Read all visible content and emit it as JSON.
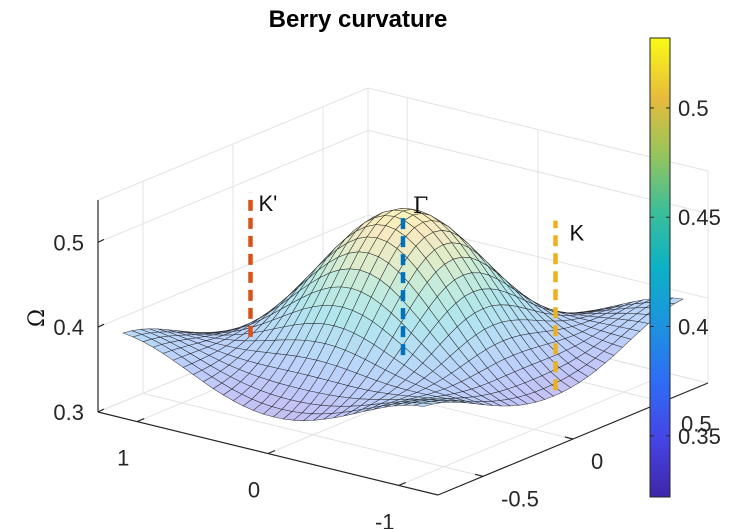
{
  "chart_data": {
    "type": "surface3d",
    "title": "Berry curvature",
    "zlabel": "Ω",
    "xlabel": "",
    "ylabel": "",
    "x_ticks": [
      "1",
      "0",
      "-1"
    ],
    "y_ticks": [
      "0.5",
      "0",
      "-0.5"
    ],
    "z_ticks": [
      "0.3",
      "0.4",
      "0.5"
    ],
    "xlim": [
      -1.3,
      1.3
    ],
    "ylim": [
      -0.75,
      0.75
    ],
    "zlim": [
      0.3,
      0.55
    ],
    "grid": true,
    "colormap": "parula",
    "colorbar": {
      "ticks": [
        "0.35",
        "0.4",
        "0.45",
        "0.5"
      ],
      "range": [
        0.322,
        0.532
      ],
      "location": "right"
    },
    "surface_peak": {
      "x": 0,
      "y": 0,
      "value": 0.52
    },
    "annotations": [
      {
        "label": "K'",
        "color": "#d95319",
        "x": 0.65,
        "y": -0.375,
        "z_range": [
          0.38,
          0.55
        ]
      },
      {
        "label": "Γ",
        "color": "#0072bd",
        "x": 0,
        "y": 0,
        "z_range": [
          0.35,
          0.52
        ]
      },
      {
        "label": "K",
        "color": "#edb120",
        "x": -0.65,
        "y": 0.375,
        "z_range": [
          0.3,
          0.5
        ]
      }
    ]
  }
}
